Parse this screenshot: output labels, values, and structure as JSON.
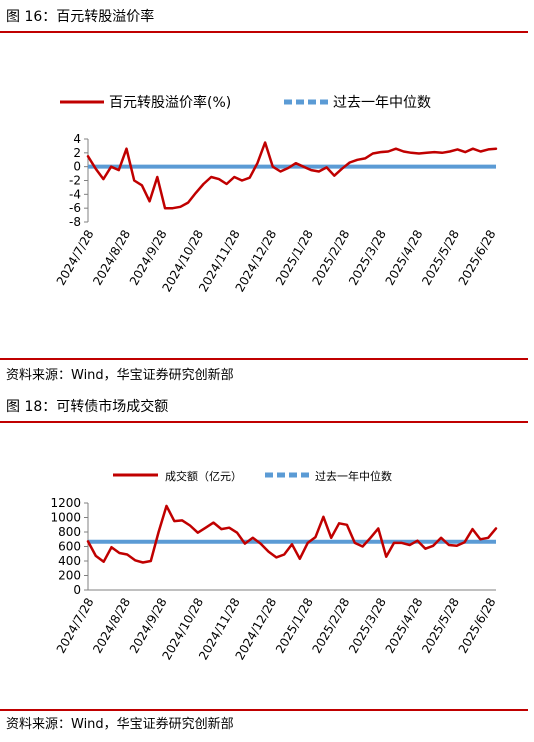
{
  "figures": [
    {
      "title": "图 16：百元转股溢价率",
      "source": "资料来源：Wind，华宝证券研究创新部"
    },
    {
      "title": "图 18：可转债市场成交额",
      "source": "资料来源：Wind，华宝证券研究创新部"
    }
  ],
  "chart_data": [
    {
      "type": "line",
      "x_tick_labels": [
        "2024/7/28",
        "2024/8/28",
        "2024/9/28",
        "2024/10/28",
        "2024/11/28",
        "2024/12/28",
        "2025/1/28",
        "2025/2/28",
        "2025/3/28",
        "2025/4/28",
        "2025/5/28",
        "2025/6/28"
      ],
      "y_tick_labels": [
        "4",
        "2",
        "0",
        "-2",
        "-4",
        "-6",
        "-8"
      ],
      "ylim": [
        -8,
        4
      ],
      "grid": false,
      "legend_position": "top",
      "series": [
        {
          "name": "百元转股溢价率(%)",
          "color": "#c00000",
          "values": [
            1.5,
            -0.3,
            -1.8,
            0,
            -0.5,
            2.6,
            -2,
            -2.7,
            -5,
            -1.5,
            -6,
            -6,
            -5.8,
            -5.2,
            -3.8,
            -2.5,
            -1.5,
            -1.8,
            -2.5,
            -1.5,
            -2,
            -1.6,
            0.5,
            3.5,
            0,
            -0.7,
            -0.2,
            0.5,
            0,
            -0.5,
            -0.7,
            -0.1,
            -1.3,
            -0.3,
            0.6,
            1,
            1.2,
            1.9,
            2.1,
            2.2,
            2.6,
            2.2,
            2,
            1.9,
            2,
            2.1,
            2,
            2.2,
            2.5,
            2.1,
            2.6,
            2.2,
            2.5,
            2.6
          ]
        },
        {
          "name": "过去一年中位数",
          "color": "#5b9bd5",
          "constant": 0
        }
      ]
    },
    {
      "type": "line",
      "x_tick_labels": [
        "2024/7/28",
        "2024/8/28",
        "2024/9/28",
        "2024/10/28",
        "2024/11/28",
        "2024/12/28",
        "2025/1/28",
        "2025/2/28",
        "2025/3/28",
        "2025/4/28",
        "2025/5/28",
        "2025/6/28"
      ],
      "y_tick_labels": [
        "1200",
        "1000",
        "800",
        "600",
        "400",
        "200",
        "0"
      ],
      "ylim": [
        0,
        1200
      ],
      "grid": false,
      "legend_position": "top",
      "series": [
        {
          "name": "成交额（亿元）",
          "color": "#c00000",
          "values": [
            670,
            470,
            390,
            590,
            510,
            490,
            410,
            380,
            400,
            800,
            1160,
            950,
            960,
            890,
            790,
            860,
            930,
            840,
            860,
            790,
            640,
            720,
            640,
            530,
            450,
            490,
            630,
            430,
            650,
            730,
            1010,
            720,
            920,
            900,
            650,
            600,
            720,
            850,
            460,
            650,
            650,
            620,
            680,
            570,
            610,
            720,
            620,
            610,
            660,
            840,
            700,
            720,
            850
          ]
        },
        {
          "name": "过去一年中位数",
          "color": "#5b9bd5",
          "constant": 665
        }
      ]
    }
  ]
}
